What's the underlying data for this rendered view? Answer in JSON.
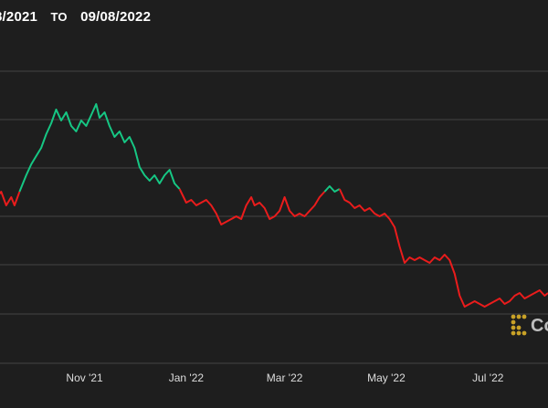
{
  "header": {
    "from_date": "8/2021",
    "to_label": "TO",
    "to_date": "09/08/2022"
  },
  "colors": {
    "background": "#1e1e1e",
    "grid": "#444444",
    "up": "#16c784",
    "down": "#ea1c1c"
  },
  "watermark": {
    "text": "Co",
    "icon": "coindesk-logo-icon"
  },
  "chart_data": {
    "type": "line",
    "title": "",
    "xlabel": "",
    "ylabel": "",
    "grid": true,
    "x_ticks": [
      "Nov '21",
      "Jan '22",
      "Mar '22",
      "May '22",
      "Jul '22"
    ],
    "x_tick_dates": [
      "2021-11-01",
      "2022-01-01",
      "2022-03-01",
      "2022-05-01",
      "2022-07-01"
    ],
    "x_range": [
      "2021-09-08",
      "2022-08-06"
    ],
    "y_range": [
      0,
      1
    ],
    "series": [
      {
        "segments": [
          {
            "color": "down",
            "points": [
              [
                "2021-09-08",
                0.57
              ],
              [
                "2021-09-12",
                0.6
              ],
              [
                "2021-09-15",
                0.55
              ],
              [
                "2021-09-18",
                0.58
              ],
              [
                "2021-09-20",
                0.55
              ],
              [
                "2021-09-23",
                0.6
              ]
            ]
          },
          {
            "color": "up",
            "points": [
              [
                "2021-09-23",
                0.6
              ],
              [
                "2021-09-27",
                0.66
              ],
              [
                "2021-09-30",
                0.7
              ],
              [
                "2021-10-03",
                0.73
              ],
              [
                "2021-10-06",
                0.76
              ],
              [
                "2021-10-09",
                0.81
              ],
              [
                "2021-10-12",
                0.85
              ],
              [
                "2021-10-15",
                0.9
              ],
              [
                "2021-10-18",
                0.86
              ],
              [
                "2021-10-21",
                0.89
              ],
              [
                "2021-10-24",
                0.84
              ],
              [
                "2021-10-27",
                0.82
              ],
              [
                "2021-10-30",
                0.86
              ],
              [
                "2021-11-02",
                0.84
              ],
              [
                "2021-11-05",
                0.88
              ],
              [
                "2021-11-08",
                0.92
              ],
              [
                "2021-11-10",
                0.87
              ],
              [
                "2021-11-13",
                0.89
              ],
              [
                "2021-11-16",
                0.84
              ],
              [
                "2021-11-19",
                0.8
              ],
              [
                "2021-11-22",
                0.82
              ],
              [
                "2021-11-25",
                0.78
              ],
              [
                "2021-11-28",
                0.8
              ],
              [
                "2021-12-01",
                0.76
              ],
              [
                "2021-12-04",
                0.69
              ],
              [
                "2021-12-07",
                0.66
              ],
              [
                "2021-12-10",
                0.64
              ],
              [
                "2021-12-13",
                0.66
              ],
              [
                "2021-12-16",
                0.63
              ],
              [
                "2021-12-19",
                0.66
              ],
              [
                "2021-12-22",
                0.68
              ],
              [
                "2021-12-25",
                0.63
              ],
              [
                "2021-12-28",
                0.61
              ]
            ]
          },
          {
            "color": "down",
            "points": [
              [
                "2021-12-28",
                0.61
              ],
              [
                "2022-01-01",
                0.56
              ],
              [
                "2022-01-04",
                0.57
              ],
              [
                "2022-01-07",
                0.55
              ],
              [
                "2022-01-10",
                0.56
              ],
              [
                "2022-01-13",
                0.57
              ],
              [
                "2022-01-16",
                0.55
              ],
              [
                "2022-01-19",
                0.52
              ],
              [
                "2022-01-22",
                0.48
              ],
              [
                "2022-01-25",
                0.49
              ],
              [
                "2022-01-28",
                0.5
              ],
              [
                "2022-01-31",
                0.51
              ],
              [
                "2022-02-03",
                0.5
              ],
              [
                "2022-02-06",
                0.55
              ],
              [
                "2022-02-09",
                0.58
              ],
              [
                "2022-02-11",
                0.55
              ],
              [
                "2022-02-14",
                0.56
              ],
              [
                "2022-02-17",
                0.54
              ],
              [
                "2022-02-20",
                0.5
              ],
              [
                "2022-02-23",
                0.51
              ],
              [
                "2022-02-26",
                0.53
              ],
              [
                "2022-03-01",
                0.58
              ],
              [
                "2022-03-04",
                0.53
              ],
              [
                "2022-03-07",
                0.51
              ],
              [
                "2022-03-10",
                0.52
              ],
              [
                "2022-03-13",
                0.51
              ],
              [
                "2022-03-16",
                0.53
              ],
              [
                "2022-03-19",
                0.55
              ],
              [
                "2022-03-22",
                0.58
              ],
              [
                "2022-03-25",
                0.6
              ]
            ]
          },
          {
            "color": "up",
            "points": [
              [
                "2022-03-25",
                0.6
              ],
              [
                "2022-03-28",
                0.62
              ],
              [
                "2022-03-31",
                0.6
              ],
              [
                "2022-04-03",
                0.61
              ]
            ]
          },
          {
            "color": "down",
            "points": [
              [
                "2022-04-03",
                0.61
              ],
              [
                "2022-04-06",
                0.57
              ],
              [
                "2022-04-09",
                0.56
              ],
              [
                "2022-04-12",
                0.54
              ],
              [
                "2022-04-15",
                0.55
              ],
              [
                "2022-04-18",
                0.53
              ],
              [
                "2022-04-21",
                0.54
              ],
              [
                "2022-04-24",
                0.52
              ],
              [
                "2022-04-27",
                0.51
              ],
              [
                "2022-04-30",
                0.52
              ],
              [
                "2022-05-03",
                0.5
              ],
              [
                "2022-05-06",
                0.47
              ],
              [
                "2022-05-09",
                0.4
              ],
              [
                "2022-05-12",
                0.34
              ],
              [
                "2022-05-15",
                0.36
              ],
              [
                "2022-05-18",
                0.35
              ],
              [
                "2022-05-21",
                0.36
              ],
              [
                "2022-05-24",
                0.35
              ],
              [
                "2022-05-27",
                0.34
              ],
              [
                "2022-05-30",
                0.36
              ],
              [
                "2022-06-02",
                0.35
              ],
              [
                "2022-06-05",
                0.37
              ],
              [
                "2022-06-08",
                0.35
              ],
              [
                "2022-06-11",
                0.3
              ],
              [
                "2022-06-14",
                0.22
              ],
              [
                "2022-06-17",
                0.18
              ],
              [
                "2022-06-20",
                0.19
              ],
              [
                "2022-06-23",
                0.2
              ],
              [
                "2022-06-26",
                0.19
              ],
              [
                "2022-06-29",
                0.18
              ],
              [
                "2022-07-02",
                0.19
              ],
              [
                "2022-07-05",
                0.2
              ],
              [
                "2022-07-08",
                0.21
              ],
              [
                "2022-07-11",
                0.19
              ],
              [
                "2022-07-14",
                0.2
              ],
              [
                "2022-07-17",
                0.22
              ],
              [
                "2022-07-20",
                0.23
              ],
              [
                "2022-07-23",
                0.21
              ],
              [
                "2022-07-26",
                0.22
              ],
              [
                "2022-07-29",
                0.23
              ],
              [
                "2022-08-01",
                0.24
              ],
              [
                "2022-08-04",
                0.22
              ],
              [
                "2022-08-06",
                0.23
              ]
            ]
          }
        ]
      }
    ]
  }
}
